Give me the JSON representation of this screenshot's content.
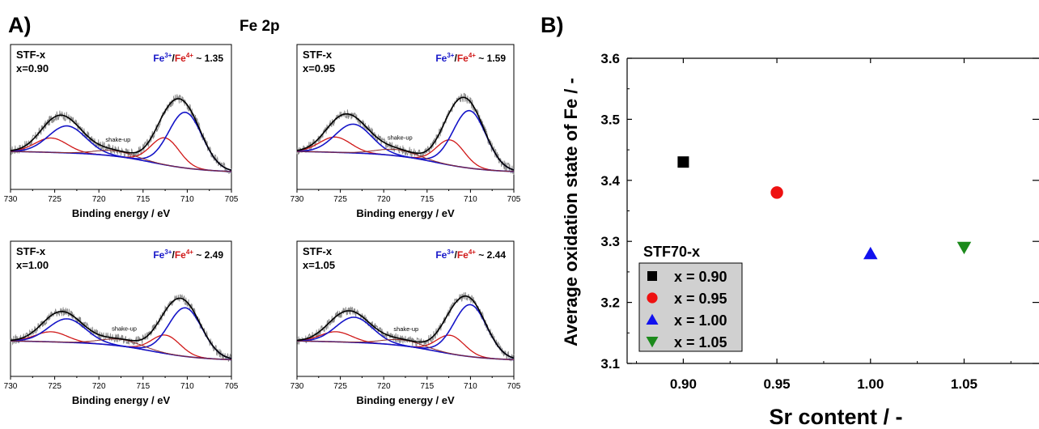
{
  "figure": {
    "panel_a_label": "A)",
    "panel_b_label": "B)",
    "panel_a_title": "Fe 2p"
  },
  "colors": {
    "raw": "#8c8c8c",
    "envelope": "#000000",
    "fe3": "#1515c8",
    "fe4": "#d01818",
    "background": "#7a7a8a",
    "shakeup": "#8a2a2a",
    "square": "#000000",
    "circle": "#ee1111",
    "up_triangle": "#1111ee",
    "down_triangle": "#1c8a1c",
    "legend_bg": "#d0d0d0"
  },
  "chart_data": [
    {
      "type": "line",
      "id": "xps-090",
      "sample": "STF-x",
      "composition": "x=0.90",
      "ratio_label": {
        "fe3": "Fe",
        "fe3_sup": "3+",
        "sep": "/",
        "fe4": "Fe",
        "fe4_sup": "4+",
        "value": "~ 1.35"
      },
      "annotation": "shake-up",
      "xlabel": "Binding energy / eV",
      "xlim": [
        730,
        705
      ],
      "xticks": [
        730,
        725,
        720,
        715,
        710,
        705
      ],
      "fe3_peaks": [
        [
          710.2,
          1.9,
          0.62
        ],
        [
          723.6,
          2.1,
          0.3
        ]
      ],
      "fe4_peaks": [
        [
          712.5,
          1.6,
          0.3
        ],
        [
          725.4,
          1.8,
          0.16
        ]
      ],
      "shakeup_peaks": [
        [
          718.2,
          2.2,
          0.06
        ]
      ]
    },
    {
      "type": "line",
      "id": "xps-095",
      "sample": "STF-x",
      "composition": "x=0.95",
      "ratio_label": {
        "fe3": "Fe",
        "fe3_sup": "3+",
        "sep": "/",
        "fe4": "Fe",
        "fe4_sup": "4+",
        "value": "~ 1.59"
      },
      "annotation": "shake-up",
      "xlabel": "Binding energy / eV",
      "xlim": [
        730,
        705
      ],
      "xticks": [
        730,
        725,
        720,
        715,
        710,
        705
      ],
      "fe3_peaks": [
        [
          710.1,
          1.9,
          0.64
        ],
        [
          723.5,
          2.1,
          0.32
        ]
      ],
      "fe4_peaks": [
        [
          712.3,
          1.6,
          0.28
        ],
        [
          725.6,
          1.8,
          0.17
        ]
      ],
      "shakeup_peaks": [
        [
          718.5,
          2.3,
          0.07
        ]
      ]
    },
    {
      "type": "line",
      "id": "xps-100",
      "sample": "STF-x",
      "composition": "x=1.00",
      "ratio_label": {
        "fe3": "Fe",
        "fe3_sup": "3+",
        "sep": "/",
        "fe4": "Fe",
        "fe4_sup": "4+",
        "value": "~ 2.49"
      },
      "annotation": "shake-up",
      "xlabel": "Binding energy / eV",
      "xlim": [
        730,
        705
      ],
      "xticks": [
        730,
        725,
        720,
        715,
        710,
        705
      ],
      "fe3_peaks": [
        [
          710.2,
          1.9,
          0.58
        ],
        [
          723.6,
          2.1,
          0.28
        ]
      ],
      "fe4_peaks": [
        [
          712.4,
          1.6,
          0.22
        ],
        [
          725.4,
          1.8,
          0.12
        ]
      ],
      "shakeup_peaks": [
        [
          717.5,
          2.3,
          0.08
        ]
      ]
    },
    {
      "type": "line",
      "id": "xps-105",
      "sample": "STF-x",
      "composition": "x=1.05",
      "ratio_label": {
        "fe3": "Fe",
        "fe3_sup": "3+",
        "sep": "/",
        "fe4": "Fe",
        "fe4_sup": "4+",
        "value": "~ 2.44"
      },
      "annotation": "shake-up",
      "xlabel": "Binding energy / eV",
      "xlim": [
        730,
        705
      ],
      "xticks": [
        730,
        725,
        720,
        715,
        710,
        705
      ],
      "fe3_peaks": [
        [
          710.0,
          1.9,
          0.62
        ],
        [
          723.4,
          2.1,
          0.3
        ]
      ],
      "fe4_peaks": [
        [
          712.3,
          1.6,
          0.22
        ],
        [
          725.5,
          1.8,
          0.12
        ]
      ],
      "shakeup_peaks": [
        [
          717.8,
          2.3,
          0.07
        ]
      ]
    },
    {
      "type": "scatter",
      "id": "oxidation-state",
      "xlabel": "Sr content / -",
      "ylabel": "Average oxidation state of Fe / -",
      "xlim": [
        0.87,
        1.09
      ],
      "ylim": [
        3.1,
        3.6
      ],
      "xticks": [
        "0.90",
        "0.95",
        "1.00",
        "1.05"
      ],
      "yticks": [
        "3.1",
        "3.2",
        "3.3",
        "3.4",
        "3.5",
        "3.6"
      ],
      "legend_title": "STF70-x",
      "legend_position": "bottom-left",
      "series": [
        {
          "name": "x = 0.90",
          "marker": "square",
          "x": 0.9,
          "y": 3.43
        },
        {
          "name": "x = 0.95",
          "marker": "circle",
          "x": 0.95,
          "y": 3.38
        },
        {
          "name": "x = 1.00",
          "marker": "up_triangle",
          "x": 1.0,
          "y": 3.28
        },
        {
          "name": "x = 1.05",
          "marker": "down_triangle",
          "x": 1.05,
          "y": 3.29
        }
      ]
    }
  ]
}
